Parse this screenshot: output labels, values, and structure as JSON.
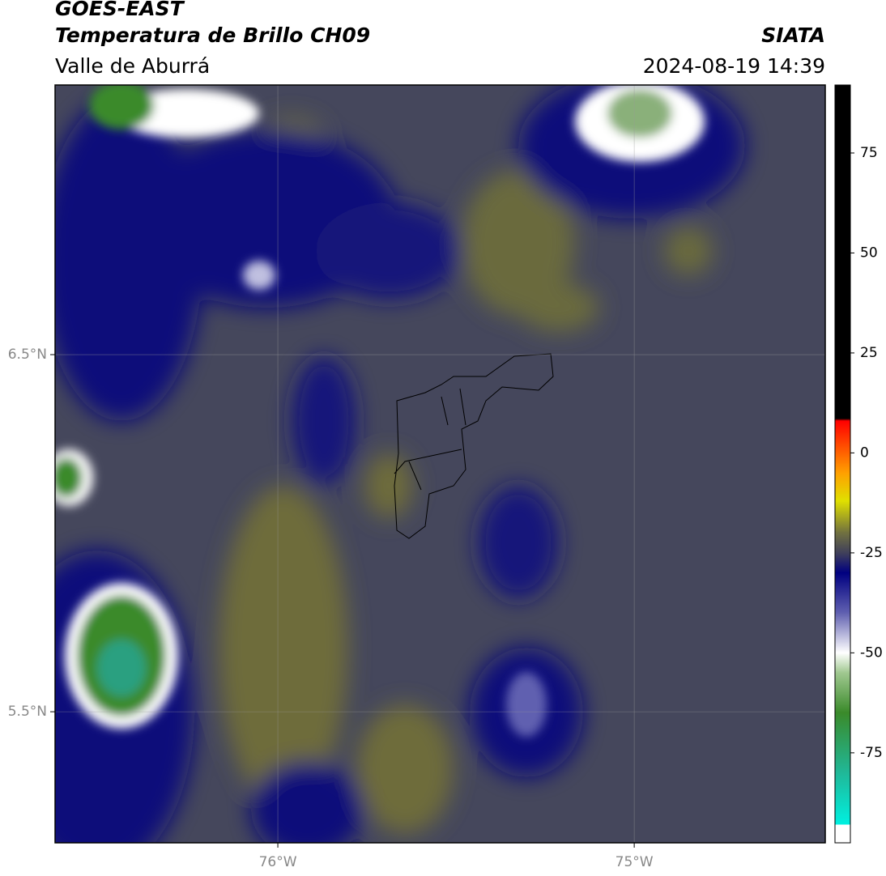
{
  "header": {
    "title": "GOES-EAST",
    "subtitle": "Temperatura de Brillo CH09",
    "region": "Valle de Aburrá",
    "source": "SIATA",
    "datetime": "2024-08-19 14:39"
  },
  "map": {
    "xlim": [
      -76.625,
      -74.464
    ],
    "ylim": [
      5.133,
      7.255
    ],
    "xticks": [
      {
        "value": -76,
        "label": "76°W"
      },
      {
        "value": -75,
        "label": "75°W"
      }
    ],
    "yticks": [
      {
        "value": 6.5,
        "label": "6.5°N"
      },
      {
        "value": 5.5,
        "label": "5.5°N"
      }
    ],
    "grid": true
  },
  "colorbar": {
    "lim": [
      -97.5,
      92
    ],
    "ticks": [
      75,
      50,
      25,
      0,
      -25,
      -50,
      -75
    ],
    "stops": [
      {
        "value": -97.5,
        "color": "#ffffff"
      },
      {
        "value": -93,
        "color": "#ffffff"
      },
      {
        "value": -92.9,
        "color": "#00f0e0"
      },
      {
        "value": -80,
        "color": "#20b898"
      },
      {
        "value": -65,
        "color": "#3a8a2a"
      },
      {
        "value": -55,
        "color": "#a0c890"
      },
      {
        "value": -50,
        "color": "#ffffff"
      },
      {
        "value": -40,
        "color": "#6060b0"
      },
      {
        "value": -30,
        "color": "#000080"
      },
      {
        "value": -25,
        "color": "#40405a"
      },
      {
        "value": -20,
        "color": "#707040"
      },
      {
        "value": -12,
        "color": "#e0e000"
      },
      {
        "value": -5,
        "color": "#ffa000"
      },
      {
        "value": 8,
        "color": "#ff0000"
      },
      {
        "value": 8.6,
        "color": "#000000"
      },
      {
        "value": 92,
        "color": "#000000"
      }
    ]
  }
}
